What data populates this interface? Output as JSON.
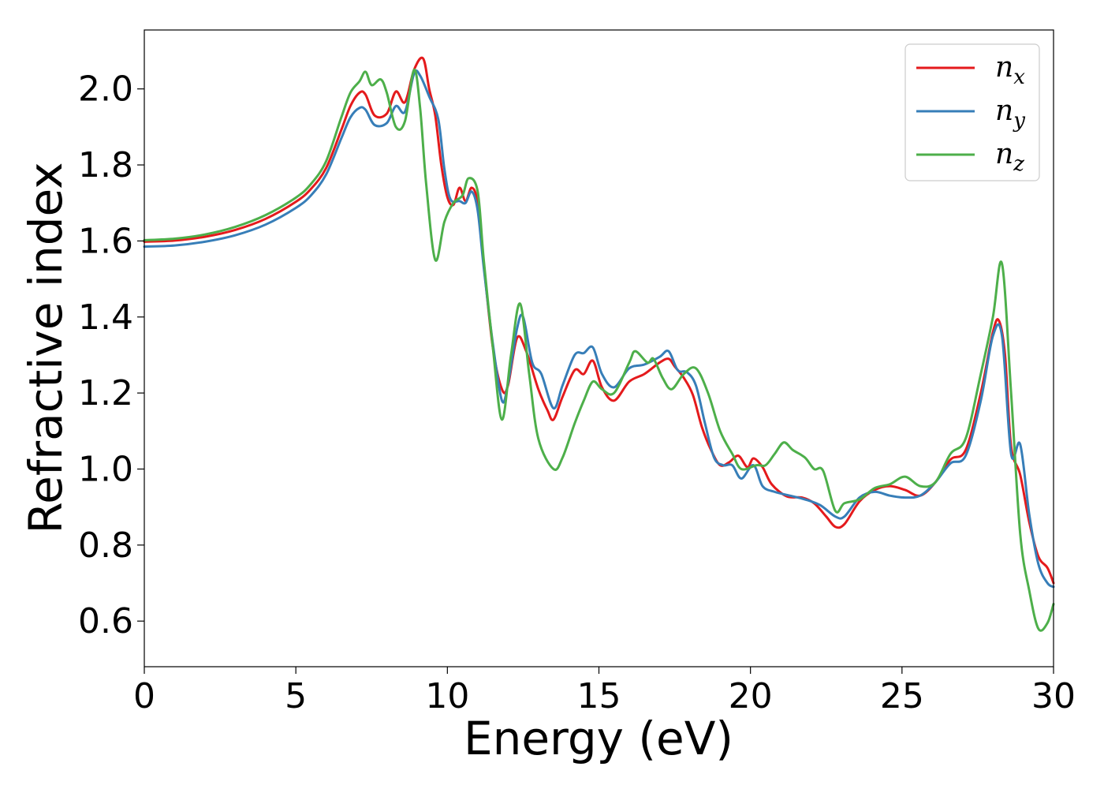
{
  "chart_data": {
    "type": "line",
    "title": "",
    "xlabel": "Energy (eV)",
    "ylabel": "Refractive index",
    "xlim": [
      0,
      30
    ],
    "ylim": [
      0.48,
      2.155
    ],
    "xticks": [
      0,
      5,
      10,
      15,
      20,
      25,
      30
    ],
    "xtick_labels": [
      "0",
      "5",
      "10",
      "15",
      "20",
      "25",
      "30"
    ],
    "yticks": [
      0.6,
      0.8,
      1.0,
      1.2,
      1.4,
      1.6,
      1.8,
      2.0
    ],
    "ytick_labels": [
      "0.6",
      "0.8",
      "1.0",
      "1.2",
      "1.4",
      "1.6",
      "1.8",
      "2.0"
    ],
    "grid": false,
    "legend_position": "top-right",
    "series": [
      {
        "name": "n_x",
        "label_base": "n",
        "label_sub": "x",
        "color": "#e41a1c",
        "points": [
          [
            0,
            1.598
          ],
          [
            1,
            1.601
          ],
          [
            2,
            1.611
          ],
          [
            3,
            1.629
          ],
          [
            4,
            1.658
          ],
          [
            5,
            1.703
          ],
          [
            5.5,
            1.737
          ],
          [
            6,
            1.792
          ],
          [
            6.5,
            1.892
          ],
          [
            6.8,
            1.955
          ],
          [
            7.1,
            1.99
          ],
          [
            7.3,
            1.985
          ],
          [
            7.6,
            1.93
          ],
          [
            8,
            1.935
          ],
          [
            8.3,
            1.993
          ],
          [
            8.6,
            1.965
          ],
          [
            8.9,
            2.05
          ],
          [
            9.2,
            2.08
          ],
          [
            9.4,
            2.0
          ],
          [
            9.6,
            1.93
          ],
          [
            9.8,
            1.8
          ],
          [
            10,
            1.715
          ],
          [
            10.2,
            1.695
          ],
          [
            10.4,
            1.74
          ],
          [
            10.6,
            1.705
          ],
          [
            10.8,
            1.74
          ],
          [
            11,
            1.7
          ],
          [
            11.2,
            1.54
          ],
          [
            11.5,
            1.32
          ],
          [
            11.8,
            1.21
          ],
          [
            12,
            1.22
          ],
          [
            12.3,
            1.345
          ],
          [
            12.6,
            1.31
          ],
          [
            13,
            1.21
          ],
          [
            13.3,
            1.155
          ],
          [
            13.5,
            1.13
          ],
          [
            13.8,
            1.19
          ],
          [
            14.2,
            1.26
          ],
          [
            14.5,
            1.25
          ],
          [
            14.8,
            1.285
          ],
          [
            15.1,
            1.215
          ],
          [
            15.5,
            1.18
          ],
          [
            16,
            1.23
          ],
          [
            16.5,
            1.25
          ],
          [
            17,
            1.28
          ],
          [
            17.3,
            1.29
          ],
          [
            17.5,
            1.27
          ],
          [
            17.8,
            1.24
          ],
          [
            18.1,
            1.195
          ],
          [
            18.4,
            1.11
          ],
          [
            18.7,
            1.05
          ],
          [
            19,
            1.01
          ],
          [
            19.3,
            1.018
          ],
          [
            19.6,
            1.035
          ],
          [
            19.9,
            1.005
          ],
          [
            20.1,
            1.028
          ],
          [
            20.4,
            1.005
          ],
          [
            20.7,
            0.96
          ],
          [
            21.2,
            0.928
          ],
          [
            21.7,
            0.925
          ],
          [
            22.1,
            0.91
          ],
          [
            22.5,
            0.875
          ],
          [
            22.8,
            0.848
          ],
          [
            23.1,
            0.855
          ],
          [
            23.6,
            0.915
          ],
          [
            24.1,
            0.945
          ],
          [
            24.6,
            0.955
          ],
          [
            25.1,
            0.945
          ],
          [
            25.6,
            0.93
          ],
          [
            26.1,
            0.965
          ],
          [
            26.6,
            1.025
          ],
          [
            27.1,
            1.05
          ],
          [
            27.6,
            1.2
          ],
          [
            28,
            1.36
          ],
          [
            28.2,
            1.39
          ],
          [
            28.4,
            1.3
          ],
          [
            28.6,
            1.06
          ],
          [
            28.9,
            0.985
          ],
          [
            29.2,
            0.86
          ],
          [
            29.5,
            0.77
          ],
          [
            29.8,
            0.74
          ],
          [
            30,
            0.7
          ]
        ]
      },
      {
        "name": "n_y",
        "label_base": "n",
        "label_sub": "y",
        "color": "#377eb8",
        "points": [
          [
            0,
            1.585
          ],
          [
            1,
            1.588
          ],
          [
            2,
            1.598
          ],
          [
            3,
            1.615
          ],
          [
            4,
            1.643
          ],
          [
            5,
            1.687
          ],
          [
            5.5,
            1.72
          ],
          [
            6,
            1.775
          ],
          [
            6.5,
            1.87
          ],
          [
            6.8,
            1.925
          ],
          [
            7.1,
            1.95
          ],
          [
            7.3,
            1.945
          ],
          [
            7.6,
            1.905
          ],
          [
            8,
            1.91
          ],
          [
            8.3,
            1.955
          ],
          [
            8.6,
            1.94
          ],
          [
            8.9,
            2.04
          ],
          [
            9.1,
            2.035
          ],
          [
            9.4,
            1.98
          ],
          [
            9.7,
            1.92
          ],
          [
            9.9,
            1.79
          ],
          [
            10.1,
            1.71
          ],
          [
            10.4,
            1.705
          ],
          [
            10.6,
            1.7
          ],
          [
            10.8,
            1.73
          ],
          [
            11,
            1.68
          ],
          [
            11.2,
            1.53
          ],
          [
            11.5,
            1.33
          ],
          [
            11.8,
            1.18
          ],
          [
            12,
            1.225
          ],
          [
            12.3,
            1.37
          ],
          [
            12.5,
            1.4
          ],
          [
            12.8,
            1.28
          ],
          [
            13.1,
            1.25
          ],
          [
            13.5,
            1.16
          ],
          [
            13.8,
            1.22
          ],
          [
            14.2,
            1.3
          ],
          [
            14.5,
            1.305
          ],
          [
            14.8,
            1.32
          ],
          [
            15.1,
            1.25
          ],
          [
            15.5,
            1.215
          ],
          [
            16,
            1.265
          ],
          [
            16.5,
            1.275
          ],
          [
            17,
            1.295
          ],
          [
            17.3,
            1.31
          ],
          [
            17.6,
            1.26
          ],
          [
            17.9,
            1.255
          ],
          [
            18.2,
            1.22
          ],
          [
            18.5,
            1.12
          ],
          [
            18.8,
            1.03
          ],
          [
            19.1,
            1.01
          ],
          [
            19.4,
            1.01
          ],
          [
            19.7,
            0.975
          ],
          [
            20.1,
            1.01
          ],
          [
            20.4,
            0.955
          ],
          [
            20.8,
            0.94
          ],
          [
            21.3,
            0.93
          ],
          [
            21.8,
            0.92
          ],
          [
            22.3,
            0.905
          ],
          [
            22.8,
            0.875
          ],
          [
            23.1,
            0.875
          ],
          [
            23.6,
            0.925
          ],
          [
            24.1,
            0.94
          ],
          [
            24.6,
            0.93
          ],
          [
            25.1,
            0.925
          ],
          [
            25.6,
            0.93
          ],
          [
            26.1,
            0.965
          ],
          [
            26.6,
            1.015
          ],
          [
            27.1,
            1.035
          ],
          [
            27.6,
            1.18
          ],
          [
            28,
            1.35
          ],
          [
            28.3,
            1.35
          ],
          [
            28.6,
            1.04
          ],
          [
            28.9,
            1.065
          ],
          [
            29.2,
            0.88
          ],
          [
            29.5,
            0.75
          ],
          [
            29.8,
            0.7
          ],
          [
            30,
            0.69
          ]
        ]
      },
      {
        "name": "n_z",
        "label_base": "n",
        "label_sub": "z",
        "color": "#4daf4a",
        "points": [
          [
            0,
            1.602
          ],
          [
            1,
            1.606
          ],
          [
            2,
            1.617
          ],
          [
            3,
            1.637
          ],
          [
            4,
            1.668
          ],
          [
            5,
            1.714
          ],
          [
            5.5,
            1.75
          ],
          [
            6,
            1.81
          ],
          [
            6.5,
            1.925
          ],
          [
            6.8,
            1.99
          ],
          [
            7.1,
            2.02
          ],
          [
            7.3,
            2.045
          ],
          [
            7.5,
            2.01
          ],
          [
            7.8,
            2.025
          ],
          [
            8,
            1.99
          ],
          [
            8.3,
            1.9
          ],
          [
            8.6,
            1.915
          ],
          [
            8.9,
            2.05
          ],
          [
            9.1,
            1.95
          ],
          [
            9.3,
            1.75
          ],
          [
            9.6,
            1.55
          ],
          [
            9.9,
            1.65
          ],
          [
            10.2,
            1.7
          ],
          [
            10.5,
            1.72
          ],
          [
            10.7,
            1.765
          ],
          [
            11,
            1.73
          ],
          [
            11.2,
            1.55
          ],
          [
            11.5,
            1.32
          ],
          [
            11.8,
            1.13
          ],
          [
            12.1,
            1.3
          ],
          [
            12.4,
            1.435
          ],
          [
            12.7,
            1.25
          ],
          [
            13,
            1.08
          ],
          [
            13.5,
            1.0
          ],
          [
            13.8,
            1.03
          ],
          [
            14.2,
            1.12
          ],
          [
            14.5,
            1.18
          ],
          [
            14.8,
            1.23
          ],
          [
            15.1,
            1.21
          ],
          [
            15.5,
            1.2
          ],
          [
            16,
            1.28
          ],
          [
            16.2,
            1.31
          ],
          [
            16.6,
            1.28
          ],
          [
            16.8,
            1.29
          ],
          [
            17.1,
            1.24
          ],
          [
            17.4,
            1.21
          ],
          [
            17.8,
            1.25
          ],
          [
            18.2,
            1.265
          ],
          [
            18.6,
            1.2
          ],
          [
            19,
            1.1
          ],
          [
            19.4,
            1.04
          ],
          [
            19.7,
            1.0
          ],
          [
            20.2,
            1.01
          ],
          [
            20.5,
            1.01
          ],
          [
            20.8,
            1.04
          ],
          [
            21.1,
            1.07
          ],
          [
            21.4,
            1.05
          ],
          [
            21.8,
            1.03
          ],
          [
            22.1,
            1.0
          ],
          [
            22.4,
            0.995
          ],
          [
            22.8,
            0.89
          ],
          [
            23.1,
            0.91
          ],
          [
            23.6,
            0.92
          ],
          [
            24.1,
            0.95
          ],
          [
            24.6,
            0.96
          ],
          [
            25.1,
            0.98
          ],
          [
            25.6,
            0.955
          ],
          [
            26.1,
            0.965
          ],
          [
            26.6,
            1.04
          ],
          [
            27.1,
            1.08
          ],
          [
            27.6,
            1.25
          ],
          [
            28,
            1.4
          ],
          [
            28.3,
            1.54
          ],
          [
            28.6,
            1.2
          ],
          [
            28.9,
            0.83
          ],
          [
            29.2,
            0.68
          ],
          [
            29.5,
            0.58
          ],
          [
            29.8,
            0.595
          ],
          [
            30,
            0.645
          ]
        ]
      }
    ]
  }
}
